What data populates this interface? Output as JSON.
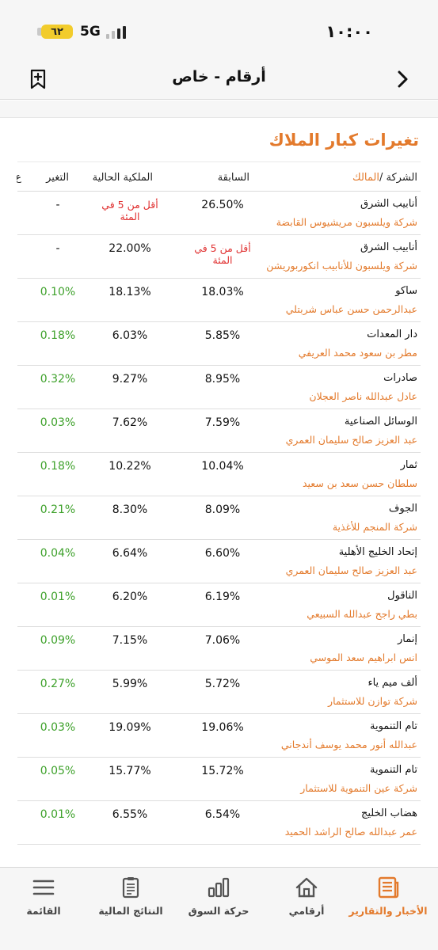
{
  "status_bar": {
    "time": "١٠:٠٠",
    "battery": "٦٢",
    "network": "5G"
  },
  "nav": {
    "title": "أرقام - خاص"
  },
  "section": {
    "title": "تغيرات كبار الملاك",
    "headers": {
      "company": "الشركة /",
      "owner": "المالك",
      "previous": "السابقة",
      "current": "الملكية الحالية",
      "change": "التغير",
      "cut": "ع"
    }
  },
  "rows": [
    {
      "company": "أنابيب الشرق",
      "owner": "شركة ويلسبون مريشيوس القابضة",
      "previous": "26.50%",
      "current": "أقل من 5 في المئة",
      "change": "-"
    },
    {
      "company": "أنابيب الشرق",
      "owner": "شركة ويلسبون للأنابيب انكوربوريشن",
      "previous": "أقل من 5 في المئة",
      "current": "22.00%",
      "change": "-"
    },
    {
      "company": "ساكو",
      "owner": "عبدالرحمن حسن عباس شربتلي",
      "previous": "18.03%",
      "current": "18.13%",
      "change": "0.10%"
    },
    {
      "company": "دار المعدات",
      "owner": "مطر بن سعود محمد العريفي",
      "previous": "5.85%",
      "current": "6.03%",
      "change": "0.18%"
    },
    {
      "company": "صادرات",
      "owner": "عادل عبدالله ناصر العجلان",
      "previous": "8.95%",
      "current": "9.27%",
      "change": "0.32%"
    },
    {
      "company": "الوسائل الصناعية",
      "owner": "عبد العزيز صالح سليمان العمري",
      "previous": "7.59%",
      "current": "7.62%",
      "change": "0.03%"
    },
    {
      "company": "ثمار",
      "owner": "سلطان حسن سعد بن سعيد",
      "previous": "10.04%",
      "current": "10.22%",
      "change": "0.18%"
    },
    {
      "company": "الجوف",
      "owner": "شركة المنجم للأغذية",
      "previous": "8.09%",
      "current": "8.30%",
      "change": "0.21%"
    },
    {
      "company": "إتحاد الخليج الأهلية",
      "owner": "عبد العزيز صالح سليمان العمري",
      "previous": "6.60%",
      "current": "6.64%",
      "change": "0.04%"
    },
    {
      "company": "الناقول",
      "owner": "بطي راجح عبدالله السبيعي",
      "previous": "6.19%",
      "current": "6.20%",
      "change": "0.01%"
    },
    {
      "company": "إنمار",
      "owner": "انس ابراهيم سعد الموسي",
      "previous": "7.06%",
      "current": "7.15%",
      "change": "0.09%"
    },
    {
      "company": "ألف ميم ياء",
      "owner": "شركة توازن للاستثمار",
      "previous": "5.72%",
      "current": "5.99%",
      "change": "0.27%"
    },
    {
      "company": "تام التنموية",
      "owner": "عبدالله أنور محمد يوسف أندجاني",
      "previous": "19.06%",
      "current": "19.09%",
      "change": "0.03%"
    },
    {
      "company": "تام التنموية",
      "owner": "شركة عين التنموية للاستثمار",
      "previous": "15.72%",
      "current": "15.77%",
      "change": "0.05%"
    },
    {
      "company": "هضاب الخليج",
      "owner": "عمر عبدالله صالح الراشد الحميد",
      "previous": "6.54%",
      "current": "6.55%",
      "change": "0.01%"
    }
  ],
  "tabs": [
    {
      "label": "الأخبار والتقارير",
      "icon": "news-icon",
      "active": true
    },
    {
      "label": "أرقامي",
      "icon": "home-icon",
      "active": false
    },
    {
      "label": "حركة السوق",
      "icon": "bar-chart-icon",
      "active": false
    },
    {
      "label": "النتائج المالية",
      "icon": "clipboard-icon",
      "active": false
    },
    {
      "label": "القائمة",
      "icon": "menu-icon",
      "active": false
    }
  ],
  "colors": {
    "accent": "#e37a2c",
    "negative": "#e03030",
    "positive": "#3ea12b",
    "battery": "#f2cc2c"
  }
}
